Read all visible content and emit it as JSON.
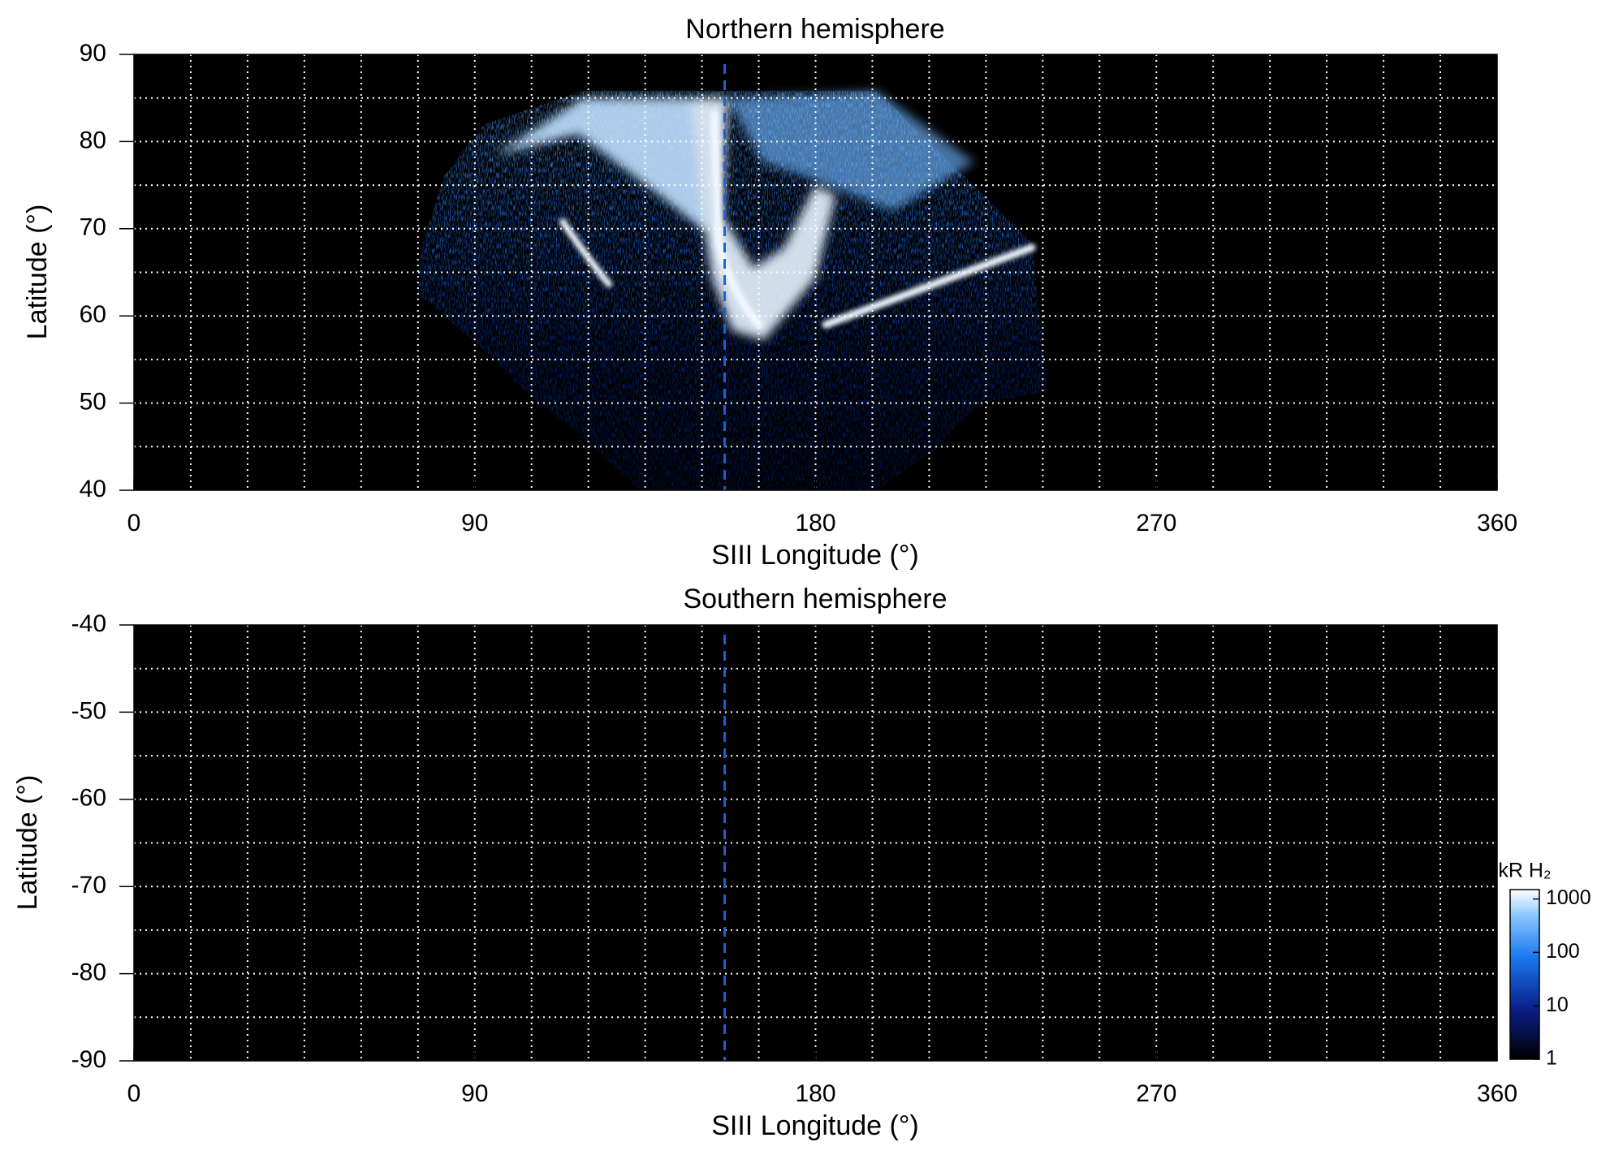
{
  "chart_data": [
    {
      "type": "heatmap",
      "title": "Northern hemisphere",
      "xlabel": "SIII Longitude (°)",
      "ylabel": "Latitude (°)",
      "xlim": [
        0,
        360
      ],
      "xticks": [
        0,
        90,
        180,
        270,
        360
      ],
      "ylim": [
        40,
        90
      ],
      "yticks": [
        40,
        50,
        60,
        70,
        80,
        90
      ],
      "xgrid": [
        15,
        30,
        45,
        60,
        75,
        90,
        105,
        120,
        135,
        150,
        165,
        180,
        195,
        210,
        225,
        240,
        255,
        270,
        285,
        300,
        315,
        330,
        345
      ],
      "ygrid": [
        45,
        50,
        55,
        60,
        65,
        70,
        75,
        80,
        85
      ],
      "reference_longitude": 156,
      "reference_color": "#1f5fd6"
    },
    {
      "type": "heatmap",
      "title": "Southern hemisphere",
      "xlabel": "SIII Longitude (°)",
      "ylabel": "Latitude (°)",
      "xlim": [
        0,
        360
      ],
      "xticks": [
        0,
        90,
        180,
        270,
        360
      ],
      "ylim": [
        -90,
        -40
      ],
      "yticks": [
        -90,
        -80,
        -70,
        -60,
        -50,
        -40
      ],
      "xgrid": [
        15,
        30,
        45,
        60,
        75,
        90,
        105,
        120,
        135,
        150,
        165,
        180,
        195,
        210,
        225,
        240,
        255,
        270,
        285,
        300,
        315,
        330,
        345
      ],
      "ygrid": [
        -85,
        -80,
        -75,
        -70,
        -65,
        -60,
        -55,
        -50,
        -45
      ],
      "reference_longitude": 156,
      "reference_color": "#1f5fd6",
      "colorbar": {
        "label": "kR H₂",
        "scale": "log",
        "lim": [
          1,
          1500
        ],
        "ticks": [
          1,
          10,
          100,
          1000
        ]
      }
    }
  ]
}
